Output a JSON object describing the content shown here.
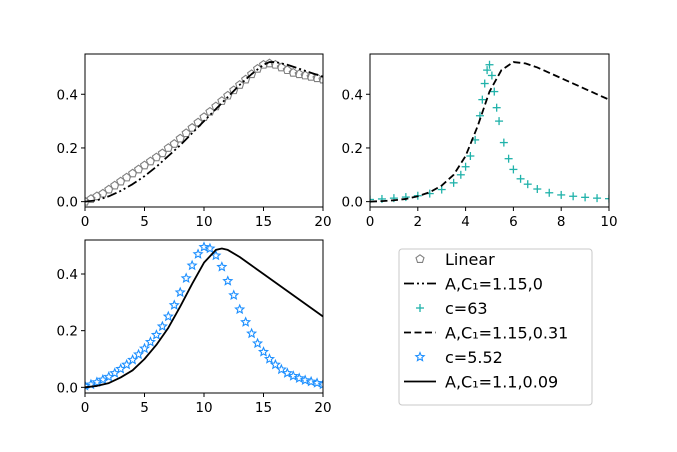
{
  "chart_data": [
    {
      "type": "line",
      "panel": "top-left",
      "xlim": [
        0,
        20
      ],
      "ylim": [
        -0.02,
        0.55
      ],
      "xticks": [
        "0",
        "5",
        "10",
        "15",
        "20"
      ],
      "yticks": [
        "0.0",
        "0.2",
        "0.4"
      ],
      "series": [
        {
          "name": "Linear",
          "style": "pentagon-markers",
          "color": "#808080",
          "x": [
            0,
            0.5,
            1,
            1.5,
            2,
            2.5,
            3,
            3.5,
            4,
            4.5,
            5,
            5.5,
            6,
            6.5,
            7,
            7.5,
            8,
            8.5,
            9,
            9.5,
            10,
            10.5,
            11,
            11.5,
            12,
            12.5,
            13,
            13.5,
            14,
            14.5,
            15,
            15.5,
            16,
            16.5,
            17,
            17.5,
            18,
            18.5,
            19,
            19.5,
            20
          ],
          "y": [
            0.0,
            0.01,
            0.02,
            0.03,
            0.045,
            0.06,
            0.075,
            0.09,
            0.105,
            0.12,
            0.135,
            0.15,
            0.165,
            0.18,
            0.2,
            0.215,
            0.235,
            0.255,
            0.275,
            0.295,
            0.315,
            0.335,
            0.355,
            0.375,
            0.395,
            0.415,
            0.435,
            0.455,
            0.475,
            0.495,
            0.51,
            0.515,
            0.51,
            0.5,
            0.49,
            0.48,
            0.475,
            0.47,
            0.465,
            0.46,
            0.455
          ]
        },
        {
          "name": "A,C₁=1.15,0",
          "style": "dash-dot-dot",
          "color": "#000000",
          "x": [
            0,
            1,
            2,
            3,
            4,
            5,
            6,
            7,
            8,
            9,
            10,
            11,
            12,
            13,
            14,
            15,
            15.5,
            16,
            17,
            18,
            19,
            20
          ],
          "y": [
            0.0,
            0.005,
            0.02,
            0.04,
            0.065,
            0.095,
            0.13,
            0.17,
            0.21,
            0.255,
            0.3,
            0.345,
            0.39,
            0.435,
            0.475,
            0.51,
            0.52,
            0.52,
            0.51,
            0.495,
            0.48,
            0.465
          ]
        }
      ]
    },
    {
      "type": "line",
      "panel": "top-right",
      "xlim": [
        0,
        10
      ],
      "ylim": [
        -0.02,
        0.55
      ],
      "xticks": [
        "0",
        "2",
        "4",
        "6",
        "8",
        "10"
      ],
      "yticks": [
        "0.0",
        "0.2",
        "0.4"
      ],
      "series": [
        {
          "name": "c=63",
          "style": "plus-markers",
          "color": "#20b2aa",
          "x": [
            0,
            0.5,
            1,
            1.5,
            2,
            2.5,
            3,
            3.5,
            3.8,
            4,
            4.2,
            4.4,
            4.6,
            4.7,
            4.8,
            4.9,
            5.0,
            5.1,
            5.2,
            5.3,
            5.4,
            5.6,
            5.8,
            6.0,
            6.3,
            6.6,
            7.0,
            7.5,
            8.0,
            8.5,
            9.0,
            9.5,
            10.0
          ],
          "y": [
            0.008,
            0.01,
            0.013,
            0.017,
            0.022,
            0.03,
            0.045,
            0.07,
            0.1,
            0.13,
            0.17,
            0.23,
            0.32,
            0.38,
            0.44,
            0.49,
            0.51,
            0.47,
            0.41,
            0.35,
            0.3,
            0.22,
            0.16,
            0.12,
            0.085,
            0.065,
            0.047,
            0.033,
            0.025,
            0.02,
            0.016,
            0.013,
            0.011
          ]
        },
        {
          "name": "A,C₁=1.15,0.31",
          "style": "dashed",
          "color": "#000000",
          "x": [
            0,
            0.5,
            1,
            1.5,
            2,
            2.5,
            3,
            3.5,
            4,
            4.5,
            5,
            5.5,
            6,
            6.5,
            7,
            7.5,
            8,
            8.5,
            9,
            9.5,
            10
          ],
          "y": [
            0.0,
            0.002,
            0.005,
            0.01,
            0.02,
            0.035,
            0.06,
            0.1,
            0.17,
            0.28,
            0.41,
            0.49,
            0.52,
            0.515,
            0.5,
            0.48,
            0.46,
            0.44,
            0.42,
            0.4,
            0.38
          ]
        }
      ]
    },
    {
      "type": "line",
      "panel": "bottom-left",
      "xlim": [
        0,
        20
      ],
      "ylim": [
        -0.02,
        0.52
      ],
      "xticks": [
        "0",
        "5",
        "10",
        "15",
        "20"
      ],
      "yticks": [
        "0.0",
        "0.2",
        "0.4"
      ],
      "series": [
        {
          "name": "c=5.52",
          "style": "star-markers",
          "color": "#1e90ff",
          "x": [
            0,
            0.5,
            1,
            1.5,
            2,
            2.5,
            3,
            3.5,
            4,
            4.5,
            5,
            5.5,
            6,
            6.5,
            7,
            7.5,
            8,
            8.5,
            9,
            9.5,
            10,
            10.5,
            11,
            11.5,
            12,
            12.5,
            13,
            13.5,
            14,
            14.5,
            15,
            15.5,
            16,
            16.5,
            17,
            17.5,
            18,
            18.5,
            19,
            19.5,
            20
          ],
          "y": [
            0.005,
            0.01,
            0.018,
            0.027,
            0.037,
            0.05,
            0.065,
            0.08,
            0.097,
            0.116,
            0.137,
            0.16,
            0.185,
            0.215,
            0.25,
            0.29,
            0.335,
            0.385,
            0.43,
            0.47,
            0.495,
            0.49,
            0.465,
            0.425,
            0.375,
            0.325,
            0.275,
            0.23,
            0.19,
            0.155,
            0.125,
            0.1,
            0.08,
            0.063,
            0.05,
            0.04,
            0.032,
            0.025,
            0.02,
            0.015,
            0.01
          ]
        },
        {
          "name": "A,C₁=1.1,0.09",
          "style": "solid",
          "color": "#000000",
          "x": [
            0,
            1,
            2,
            3,
            4,
            5,
            6,
            7,
            8,
            9,
            10,
            11,
            11.5,
            12,
            13,
            14,
            15,
            16,
            17,
            18,
            19,
            20
          ],
          "y": [
            0.0,
            0.005,
            0.015,
            0.035,
            0.06,
            0.1,
            0.15,
            0.21,
            0.285,
            0.365,
            0.44,
            0.485,
            0.49,
            0.485,
            0.46,
            0.43,
            0.4,
            0.37,
            0.34,
            0.31,
            0.28,
            0.25
          ]
        }
      ]
    }
  ],
  "legend": {
    "position": "bottom-right",
    "entries": [
      {
        "label": "Linear",
        "style": "pentagon-markers",
        "color": "#808080"
      },
      {
        "label": "A,C₁=1.15,0",
        "style": "dash-dot-dot",
        "color": "#000000"
      },
      {
        "label": "c=63",
        "style": "plus-markers",
        "color": "#20b2aa"
      },
      {
        "label": "A,C₁=1.15,0.31",
        "style": "dashed",
        "color": "#000000"
      },
      {
        "label": "c=5.52",
        "style": "star-markers",
        "color": "#1e90ff"
      },
      {
        "label": "A,C₁=1.1,0.09",
        "style": "solid",
        "color": "#000000"
      }
    ]
  }
}
